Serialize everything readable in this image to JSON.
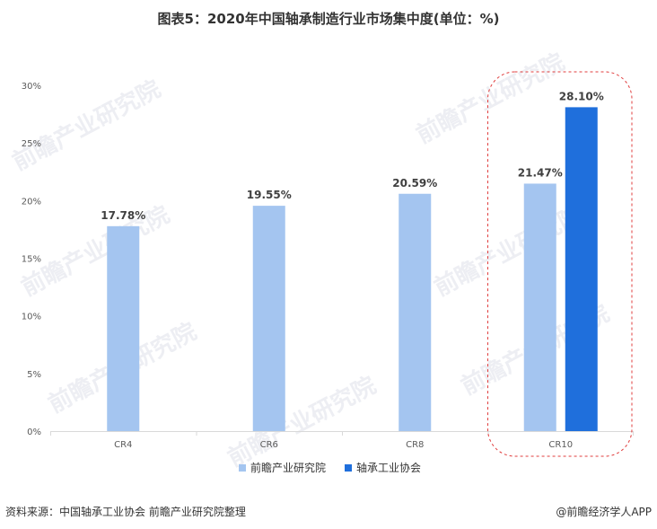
{
  "chart_data": {
    "type": "bar",
    "title": "图表5：2020年中国轴承制造行业市场集中度(单位：%)",
    "categories": [
      "CR4",
      "CR6",
      "CR8",
      "CR10"
    ],
    "series": [
      {
        "name": "前瞻产业研究院",
        "color": "#a4c5f0",
        "values": [
          17.78,
          19.55,
          20.59,
          21.47
        ]
      },
      {
        "name": "轴承工业协会",
        "color": "#1f6fdc",
        "values": [
          null,
          null,
          null,
          28.1
        ]
      }
    ],
    "value_labels": [
      "17.78%",
      "19.55%",
      "20.59%",
      "21.47%",
      "28.10%"
    ],
    "y_ticks": [
      "0%",
      "5%",
      "10%",
      "15%",
      "20%",
      "25%",
      "30%"
    ],
    "ylim": [
      0,
      30
    ],
    "legend_position": "bottom",
    "highlight": "CR10",
    "highlight_color": "#e03c3c"
  },
  "footer": {
    "source": "资料来源：中国轴承工业协会 前瞻产业研究院整理",
    "brand": "@前瞻经济学人APP"
  },
  "watermark": "前瞻产业研究院"
}
